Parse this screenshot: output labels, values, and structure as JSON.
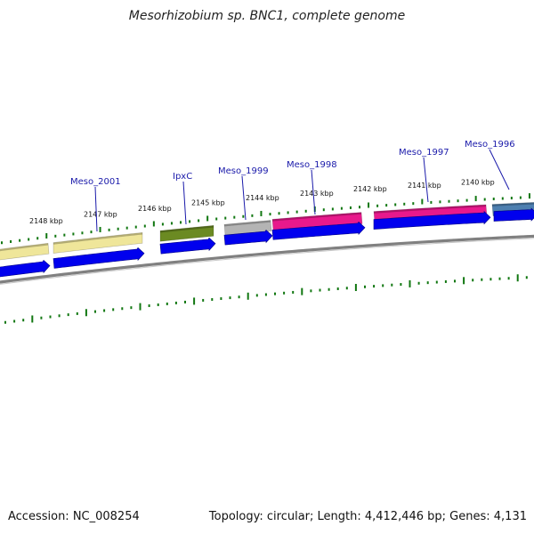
{
  "title": "Mesorhizobium sp. BNC1, complete genome",
  "footer": {
    "accession": "Accession: NC_008254",
    "summary": "Topology: circular; Length: 4,412,446 bp; Genes: 4,131"
  },
  "position_labels": [
    "2148 kbp",
    "2147 kbp",
    "2146 kbp",
    "2145 kbp",
    "2144 kbp",
    "2143 kbp",
    "2142 kbp",
    "2141 kbp",
    "2140 kbp"
  ],
  "gene_labels": [
    "Meso_2001",
    "IpxC",
    "Meso_1999",
    "Meso_1998",
    "Meso_1997",
    "Meso_1996"
  ],
  "colors": {
    "khaki": "#efe69a",
    "olive": "#6b8a22",
    "gray": "#b4b4b4",
    "magenta": "#e8198c",
    "steel": "#4d7fb0",
    "arrow_blue": "#0000ee",
    "tick_green": "#117711",
    "backbone": "#808080"
  }
}
